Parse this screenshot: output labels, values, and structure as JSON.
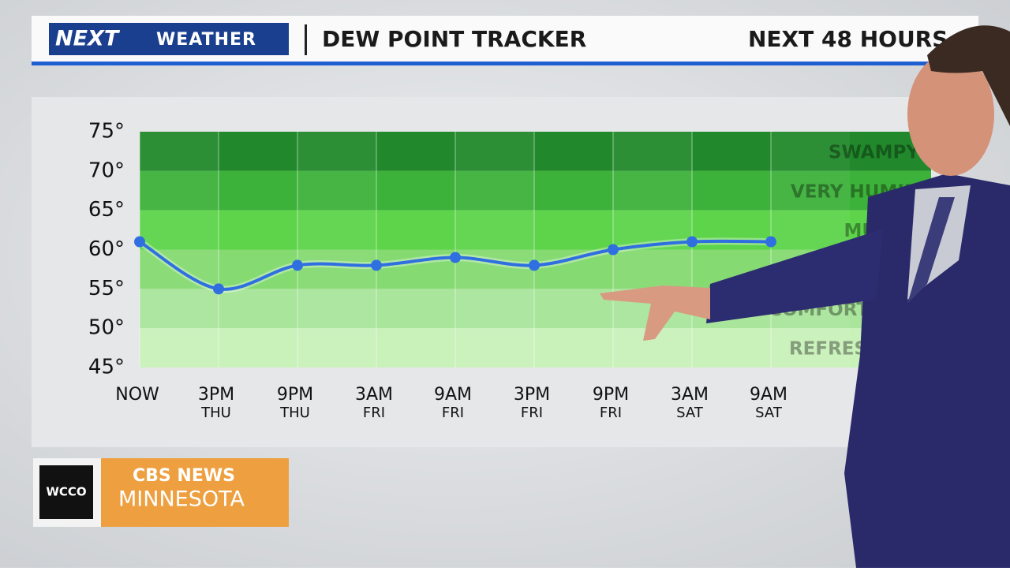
{
  "header": {
    "logo": "NEXT",
    "brand": "WEATHER",
    "title": "DEW POINT TRACKER",
    "subtitle": "NEXT 48 HOURS"
  },
  "chart_data": {
    "type": "line",
    "categories": [
      "NOW",
      "3PM",
      "9PM",
      "3AM",
      "9AM",
      "3PM",
      "9PM",
      "3AM",
      "9AM"
    ],
    "sublabels": [
      null,
      "THU",
      "THU",
      "FRI",
      "FRI",
      "FRI",
      "FRI",
      "SAT",
      "SAT"
    ],
    "values": [
      61,
      55,
      58,
      58,
      59,
      58,
      60,
      61,
      61
    ],
    "color": "#2f6fe0",
    "ylim": [
      45,
      75
    ],
    "yticks": [
      {
        "value": 45,
        "label": "45°"
      },
      {
        "value": 50,
        "label": "50°"
      },
      {
        "value": 55,
        "label": "55°"
      },
      {
        "value": 60,
        "label": "60°"
      },
      {
        "value": 65,
        "label": "65°"
      },
      {
        "value": 70,
        "label": "70°"
      },
      {
        "value": 75,
        "label": "75°"
      }
    ],
    "zones": [
      {
        "from": 70,
        "to": 75,
        "label": "SWAMPY",
        "color": "#21892b"
      },
      {
        "from": 65,
        "to": 70,
        "label": "VERY HUMID",
        "color": "#3db23a"
      },
      {
        "from": 60,
        "to": 65,
        "label": "MUGGY",
        "color": "#5dd44a"
      },
      {
        "from": 55,
        "to": 60,
        "label": null,
        "color": "#85db72"
      },
      {
        "from": 50,
        "to": 55,
        "label": "COMFORTABLE",
        "color": "#a9e59b"
      },
      {
        "from": 45,
        "to": 50,
        "label": "REFRESHING",
        "color": "#c9f1ba"
      }
    ]
  },
  "footer": {
    "station": "WCCO",
    "network": "CBS NEWS",
    "region": "MINNESOTA"
  }
}
